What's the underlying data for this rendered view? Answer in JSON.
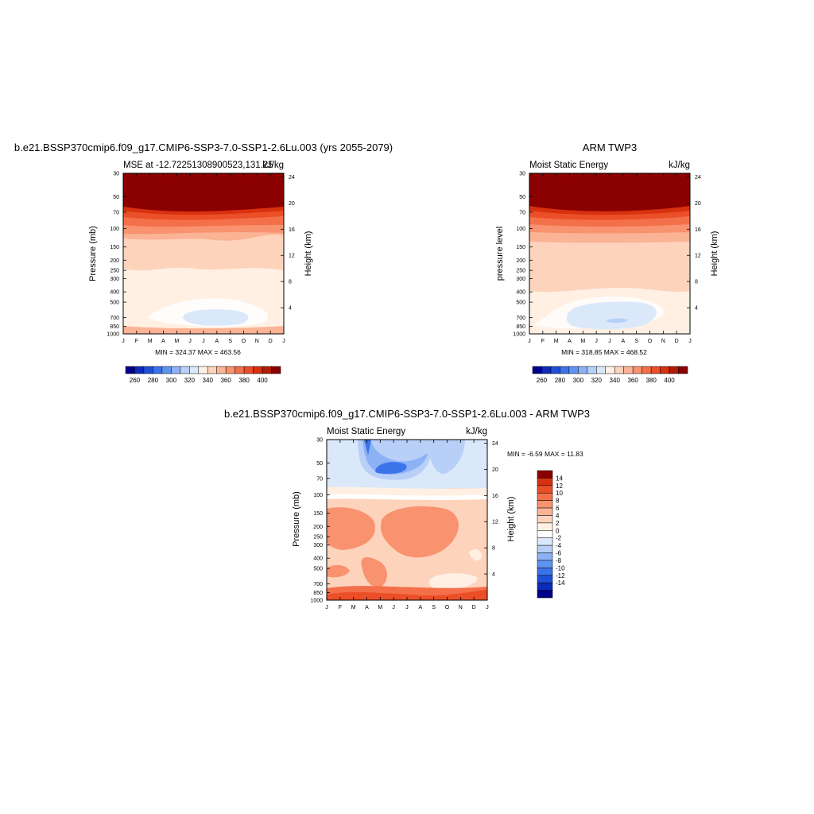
{
  "figure": {
    "months": [
      "J",
      "F",
      "M",
      "A",
      "M",
      "J",
      "J",
      "A",
      "S",
      "O",
      "N",
      "D",
      "J"
    ],
    "pressure_ticks": [
      30,
      50,
      70,
      100,
      150,
      200,
      250,
      300,
      400,
      500,
      700,
      850,
      1000
    ],
    "height_ticks": [
      4,
      8,
      12,
      16,
      20,
      24
    ],
    "colors_full": [
      "#00008b",
      "#0d2bb8",
      "#1f4fd8",
      "#3b73ea",
      "#5f93f0",
      "#8cb2f5",
      "#b8cff8",
      "#dae8fa",
      "#fff0e3",
      "#fdd3bc",
      "#fbb395",
      "#f8926f",
      "#f3704b",
      "#eb4f28",
      "#d8310f",
      "#b11c06",
      "#8b0000"
    ],
    "colors_diff": [
      "#00008b",
      "#0d2bb8",
      "#1f4fd8",
      "#3b73ea",
      "#5f93f0",
      "#8cb2f5",
      "#b8cff8",
      "#dae8fa",
      "#ffffff",
      "#fff0e3",
      "#fdd3bc",
      "#fbb395",
      "#f8926f",
      "#f3704b",
      "#eb4f28",
      "#d8310f",
      "#8b0000"
    ]
  },
  "panels": [
    {
      "title": "b.e21.BSSP370cmip6.f09_g17.CMIP6-SSP3-7.0-SSP1-2.6Lu.003 (yrs 2055-2079)",
      "left_label": "MSE at -12.72251308900523,131.25",
      "right_label": "kJ/kg",
      "ylabel": "Pressure (mb)",
      "ylabel_right": "Height (km)",
      "minmax": "MIN = 324.37  MAX = 463.56",
      "colorbar_ticks": [
        "260",
        "280",
        "300",
        "320",
        "340",
        "360",
        "380",
        "400"
      ]
    },
    {
      "title": "ARM TWP3",
      "left_label": "Moist Static Energy",
      "right_label": "kJ/kg",
      "ylabel": "pressure level",
      "ylabel_right": "Height (km)",
      "minmax": "MIN = 318.85  MAX = 468.52",
      "colorbar_ticks": [
        "260",
        "280",
        "300",
        "320",
        "340",
        "360",
        "380",
        "400"
      ]
    },
    {
      "title": "b.e21.BSSP370cmip6.f09_g17.CMIP6-SSP3-7.0-SSP1-2.6Lu.003 - ARM TWP3",
      "left_label": "Moist Static Energy",
      "right_label": "kJ/kg",
      "ylabel": "Pressure (mb)",
      "ylabel_right": "Height (km)",
      "minmax": "MIN =  -6.59  MAX =  11.83",
      "colorbar_ticks": [
        "14",
        "12",
        "10",
        "8",
        "6",
        "4",
        "2",
        "0",
        "-2",
        "-4",
        "-6",
        "-8",
        "-10",
        "-12",
        "-14"
      ]
    }
  ],
  "chart_data": [
    {
      "type": "heatmap",
      "x": [
        "J",
        "F",
        "M",
        "A",
        "M",
        "J",
        "J",
        "A",
        "S",
        "O",
        "N",
        "D",
        "J"
      ],
      "xlabel": "",
      "ylabel": "Pressure (mb)",
      "ylim": [
        1000,
        30
      ],
      "levels": [
        260,
        270,
        280,
        290,
        300,
        310,
        320,
        330,
        340,
        350,
        360,
        370,
        380,
        390,
        400,
        410
      ],
      "min": 324.37,
      "max": 463.56,
      "units": "kJ/kg"
    },
    {
      "type": "heatmap",
      "x": [
        "J",
        "F",
        "M",
        "A",
        "M",
        "J",
        "J",
        "A",
        "S",
        "O",
        "N",
        "D",
        "J"
      ],
      "xlabel": "",
      "ylabel": "pressure level",
      "ylim": [
        1000,
        30
      ],
      "levels": [
        260,
        270,
        280,
        290,
        300,
        310,
        320,
        330,
        340,
        350,
        360,
        370,
        380,
        390,
        400,
        410
      ],
      "min": 318.85,
      "max": 468.52,
      "units": "kJ/kg"
    },
    {
      "type": "heatmap",
      "x": [
        "J",
        "F",
        "M",
        "A",
        "M",
        "J",
        "J",
        "A",
        "S",
        "O",
        "N",
        "D",
        "J"
      ],
      "xlabel": "",
      "ylabel": "Pressure (mb)",
      "ylim": [
        1000,
        30
      ],
      "levels": [
        -14,
        -12,
        -10,
        -8,
        -6,
        -4,
        -2,
        0,
        2,
        4,
        6,
        8,
        10,
        12,
        14
      ],
      "min": -6.59,
      "max": 11.83,
      "units": "kJ/kg"
    }
  ]
}
